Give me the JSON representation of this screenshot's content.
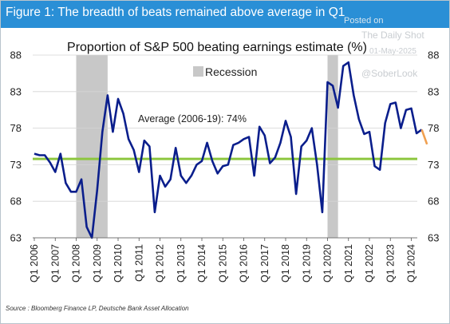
{
  "figure_title": "Figure 1: The breadth of beats remained above average in Q1",
  "watermark": {
    "posted_on": "Posted on",
    "site": "The Daily Shot",
    "date": "01-May-2025",
    "handle": "@SoberLook"
  },
  "source": "Source : Bloomberg Finance LP, Deutsche Bank Asset Allocation",
  "colors": {
    "header": "#2a8fd6",
    "series": "#0a1e8c",
    "latest": "#f0a050",
    "average": "#8dc63f",
    "recession": "#c8c8c8"
  },
  "chart_data": {
    "type": "line",
    "title": "Proportion of S&P 500 beating earnings estimate (%)",
    "ylim": [
      63,
      88
    ],
    "yticks": [
      63,
      68,
      73,
      78,
      83,
      88
    ],
    "right_axis": true,
    "x_tick_labels": [
      "Q1 2006",
      "Q1 2007",
      "Q1 2008",
      "Q1 2009",
      "Q1 2010",
      "Q1 2011",
      "Q1 2012",
      "Q1 2013",
      "Q1 2014",
      "Q1 2015",
      "Q1 2016",
      "Q1 2017",
      "Q1 2018",
      "Q1 2019",
      "Q1 2020",
      "Q1 2021",
      "Q1 2022",
      "Q1 2023",
      "Q1 2024"
    ],
    "legend": {
      "label": "Recession",
      "placement": "top-center"
    },
    "average": {
      "value": 73.8,
      "label": "Average (2006-19): 74%"
    },
    "recessions": [
      {
        "start": "Q1 2008",
        "end": "Q2 2009"
      },
      {
        "start": "Q1 2020",
        "end": "Q2 2020"
      }
    ],
    "quarters_per_year": 4,
    "first_quarter": "Q1 2006",
    "series": [
      {
        "values": [
          74.5,
          74.3,
          74.3,
          73.3,
          72.0,
          74.5,
          70.5,
          69.3,
          69.3,
          71.0,
          64.5,
          63.0,
          69.5,
          77.5,
          82.5,
          77.5,
          82.0,
          80.0,
          76.5,
          75.0,
          72.0,
          76.3,
          75.5,
          66.5,
          71.5,
          70.0,
          71.0,
          75.3,
          71.5,
          70.5,
          71.5,
          73.0,
          73.5,
          76.0,
          73.5,
          71.8,
          72.8,
          73.0,
          75.7,
          76.0,
          76.5,
          76.8,
          71.5,
          78.2,
          77.0,
          73.2,
          74.0,
          76.0,
          79.0,
          76.8,
          69.0,
          75.5,
          76.3,
          78.0,
          73.0,
          66.5,
          84.3,
          83.8,
          80.8,
          86.5,
          87.0,
          82.5,
          79.2,
          77.2,
          77.5,
          72.8,
          72.3,
          78.7,
          81.3,
          81.5,
          78.0,
          80.5,
          80.7,
          77.3,
          77.8
        ]
      },
      {
        "values": [
          77.8,
          75.8
        ]
      }
    ]
  }
}
